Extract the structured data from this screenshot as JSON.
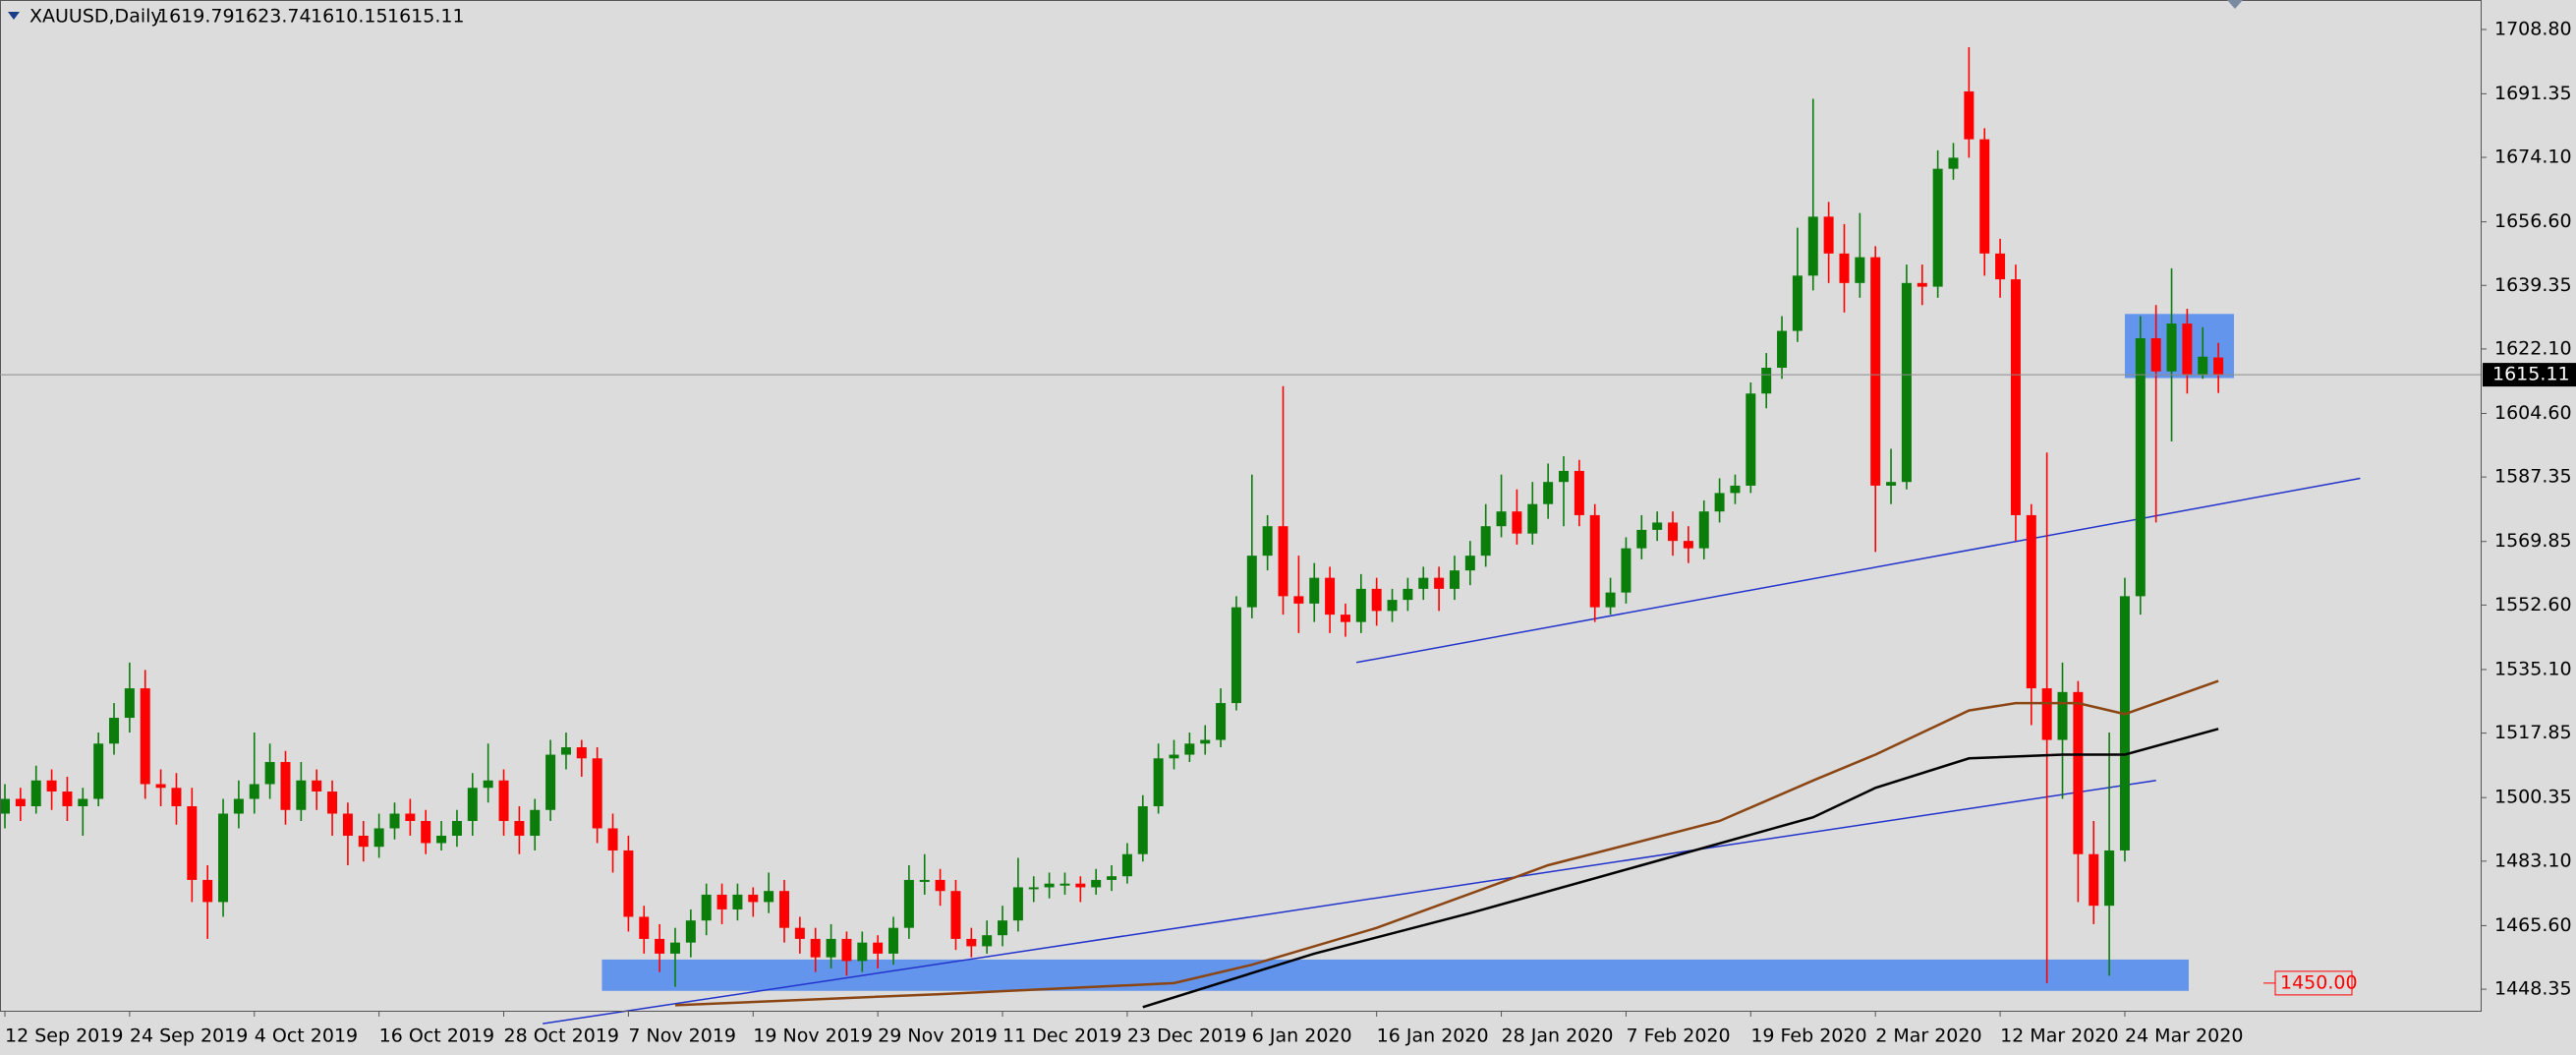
{
  "chart_data": {
    "type": "candlestick",
    "title": "XAUUSD,Daily",
    "categories": [
      "12 Sep 2019",
      null,
      null,
      null,
      null,
      null,
      null,
      null,
      "24 Sep 2019",
      null,
      null,
      null,
      null,
      null,
      null,
      null,
      "4 Oct 2019",
      null,
      null,
      null,
      null,
      null,
      null,
      null,
      "16 Oct 2019",
      null,
      null,
      null,
      null,
      null,
      null,
      null,
      "28 Oct 2019",
      null,
      null,
      null,
      null,
      null,
      null,
      null,
      "7 Nov 2019",
      null,
      null,
      null,
      null,
      null,
      null,
      null,
      "19 Nov 2019",
      null,
      null,
      null,
      null,
      null,
      null,
      null,
      "29 Nov 2019",
      null,
      null,
      null,
      null,
      null,
      null,
      null,
      "11 Dec 2019",
      null,
      null,
      null,
      null,
      null,
      null,
      null,
      "23 Dec 2019",
      null,
      null,
      null,
      null,
      null,
      null,
      null,
      "6 Jan 2020",
      null,
      null,
      null,
      null,
      null,
      null,
      null,
      "16 Jan 2020",
      null,
      null,
      null,
      null,
      null,
      null,
      null,
      "28 Jan 2020",
      null,
      null,
      null,
      null,
      null,
      null,
      null,
      "7 Feb 2020",
      null,
      null,
      null,
      null,
      null,
      null,
      null,
      "19 Feb 2020",
      null,
      null,
      null,
      null,
      null,
      null,
      null,
      "2 Mar 2020",
      null,
      null,
      null,
      null,
      null,
      null,
      null,
      "12 Mar 2020",
      null,
      null,
      null,
      null,
      null,
      null,
      null,
      "24 Mar 2020",
      null,
      null,
      null,
      null,
      null,
      null
    ],
    "open": [
      1496,
      1500,
      1498,
      1505,
      1502,
      1498,
      1500,
      1515,
      1522,
      1530,
      1504,
      1503,
      1498,
      1478,
      1472,
      1496,
      1500,
      1504,
      1510,
      1497,
      1505,
      1502,
      1496,
      1490,
      1487,
      1492,
      1496,
      1494,
      1488,
      1490,
      1494,
      1503,
      1505,
      1494,
      1490,
      1497,
      1512,
      1514,
      1511,
      1492,
      1486,
      1468,
      1462,
      1458,
      1461,
      1467,
      1474,
      1470,
      1474,
      1472,
      1475,
      1465,
      1462,
      1457,
      1462,
      1456,
      1461,
      1458,
      1465,
      1478,
      1478,
      1475,
      1462,
      1460,
      1463,
      1467,
      1476,
      1476,
      1477,
      1477,
      1476,
      1478,
      1479,
      1485,
      1498,
      1511,
      1512,
      1515,
      1516,
      1526,
      1552,
      1566,
      1574,
      1555,
      1553,
      1560,
      1550,
      1548,
      1557,
      1551,
      1554,
      1557,
      1560,
      1557,
      1562,
      1566,
      1574,
      1578,
      1572,
      1580,
      1586,
      1589,
      1577,
      1552,
      1556,
      1568,
      1573,
      1575,
      1570,
      1568,
      1578,
      1583,
      1585,
      1610,
      1617,
      1627,
      1642,
      1658,
      1648,
      1640,
      1647,
      1585,
      1586,
      1640,
      1639,
      1671,
      1692,
      1679,
      1648,
      1641,
      1577,
      1530,
      1516,
      1529,
      1485,
      1471,
      1486,
      1555,
      1625,
      1616,
      1629,
      1615,
      1619.79
    ],
    "high": [
      1504,
      1503,
      1509,
      1508,
      1506,
      1503,
      1518,
      1526,
      1537,
      1535,
      1508,
      1507,
      1503,
      1482,
      1500,
      1505,
      1518,
      1515,
      1513,
      1510,
      1508,
      1505,
      1499,
      1494,
      1496,
      1499,
      1500,
      1497,
      1494,
      1497,
      1507,
      1515,
      1508,
      1498,
      1500,
      1516,
      1518,
      1516,
      1514,
      1496,
      1490,
      1471,
      1466,
      1465,
      1470,
      1477,
      1477,
      1477,
      1476,
      1480,
      1478,
      1468,
      1465,
      1466,
      1464,
      1464,
      1463,
      1468,
      1482,
      1485,
      1481,
      1478,
      1465,
      1467,
      1471,
      1484,
      1479,
      1480,
      1480,
      1479,
      1481,
      1482,
      1488,
      1501,
      1515,
      1516,
      1518,
      1520,
      1530,
      1555,
      1588,
      1577,
      1612,
      1566,
      1564,
      1563,
      1553,
      1561,
      1560,
      1557,
      1560,
      1563,
      1563,
      1566,
      1570,
      1580,
      1588,
      1584,
      1586,
      1591,
      1593,
      1592,
      1580,
      1560,
      1571,
      1577,
      1578,
      1578,
      1574,
      1581,
      1587,
      1588,
      1613,
      1621,
      1631,
      1655,
      1690,
      1662,
      1656,
      1659,
      1650,
      1595,
      1645,
      1645,
      1676,
      1678,
      1704,
      1682,
      1652,
      1645,
      1580,
      1594,
      1537,
      1532,
      1494,
      1518,
      1560,
      1631,
      1634,
      1644,
      1633,
      1628,
      1623.74
    ],
    "low": [
      1492,
      1494,
      1496,
      1497,
      1494,
      1490,
      1498,
      1512,
      1518,
      1500,
      1498,
      1493,
      1472,
      1462,
      1468,
      1492,
      1496,
      1500,
      1493,
      1494,
      1497,
      1490,
      1482,
      1483,
      1484,
      1489,
      1490,
      1485,
      1486,
      1487,
      1490,
      1499,
      1490,
      1485,
      1486,
      1494,
      1508,
      1506,
      1488,
      1480,
      1464,
      1458,
      1453,
      1449,
      1457,
      1463,
      1466,
      1467,
      1468,
      1469,
      1461,
      1458,
      1453,
      1454,
      1452,
      1453,
      1454,
      1455,
      1462,
      1474,
      1471,
      1459,
      1457,
      1458,
      1460,
      1464,
      1472,
      1473,
      1474,
      1472,
      1474,
      1475,
      1477,
      1483,
      1496,
      1508,
      1510,
      1512,
      1514,
      1524,
      1549,
      1562,
      1550,
      1545,
      1548,
      1545,
      1544,
      1545,
      1547,
      1548,
      1551,
      1554,
      1551,
      1554,
      1558,
      1563,
      1571,
      1569,
      1569,
      1576,
      1574,
      1574,
      1548,
      1550,
      1553,
      1565,
      1570,
      1566,
      1564,
      1565,
      1575,
      1580,
      1583,
      1606,
      1614,
      1624,
      1638,
      1640,
      1632,
      1636,
      1567,
      1580,
      1584,
      1634,
      1636,
      1668,
      1674,
      1642,
      1636,
      1570,
      1520,
      1450,
      1500,
      1472,
      1466,
      1452,
      1483,
      1550,
      1575,
      1597,
      1610,
      1614,
      1610.15
    ],
    "close": [
      1500,
      1498,
      1505,
      1502,
      1498,
      1500,
      1515,
      1522,
      1530,
      1504,
      1503,
      1498,
      1478,
      1472,
      1496,
      1500,
      1504,
      1510,
      1497,
      1505,
      1502,
      1496,
      1490,
      1487,
      1492,
      1496,
      1494,
      1488,
      1490,
      1494,
      1503,
      1505,
      1494,
      1490,
      1497,
      1512,
      1514,
      1511,
      1492,
      1486,
      1468,
      1462,
      1458,
      1461,
      1467,
      1474,
      1470,
      1474,
      1472,
      1475,
      1465,
      1462,
      1457,
      1462,
      1456,
      1461,
      1458,
      1465,
      1478,
      1478,
      1475,
      1462,
      1460,
      1463,
      1467,
      1476,
      1476,
      1477,
      1477,
      1476,
      1478,
      1479,
      1485,
      1498,
      1511,
      1512,
      1515,
      1516,
      1526,
      1552,
      1566,
      1574,
      1555,
      1553,
      1560,
      1550,
      1548,
      1557,
      1551,
      1554,
      1557,
      1560,
      1557,
      1562,
      1566,
      1574,
      1578,
      1572,
      1580,
      1586,
      1589,
      1577,
      1552,
      1556,
      1568,
      1573,
      1575,
      1570,
      1568,
      1578,
      1583,
      1585,
      1610,
      1617,
      1627,
      1642,
      1658,
      1648,
      1640,
      1647,
      1585,
      1586,
      1640,
      1639,
      1671,
      1674,
      1679,
      1648,
      1641,
      1577,
      1530,
      1516,
      1529,
      1485,
      1471,
      1486,
      1555,
      1625,
      1616,
      1629,
      1615,
      1620,
      1615.11
    ],
    "up_color": "#0a7d0a",
    "down_color": "#ff0000",
    "ylim": [
      1442.5,
      1716.8
    ],
    "yticks": [
      {
        "value": 1708.8,
        "label": "1708.80"
      },
      {
        "value": 1691.35,
        "label": "1691.35"
      },
      {
        "value": 1674.1,
        "label": "1674.10"
      },
      {
        "value": 1656.6,
        "label": "1656.60"
      },
      {
        "value": 1639.35,
        "label": "1639.35"
      },
      {
        "value": 1622.1,
        "label": "1622.10"
      },
      {
        "value": 1604.6,
        "label": "1604.60"
      },
      {
        "value": 1587.35,
        "label": "1587.35"
      },
      {
        "value": 1569.85,
        "label": "1569.85"
      },
      {
        "value": 1552.6,
        "label": "1552.60"
      },
      {
        "value": 1535.1,
        "label": "1535.10"
      },
      {
        "value": 1517.85,
        "label": "1517.85"
      },
      {
        "value": 1500.35,
        "label": "1500.35"
      },
      {
        "value": 1483.1,
        "label": "1483.10"
      },
      {
        "value": 1465.6,
        "label": "1465.60"
      },
      {
        "value": 1448.35,
        "label": "1448.35"
      }
    ],
    "grid": false,
    "moving_averages": [
      {
        "color": "#8b4513",
        "x": [
          43,
          60,
          75,
          80,
          88,
          99,
          110,
          116,
          120,
          126,
          129,
          133,
          136,
          142
        ],
        "values": [
          1444,
          1447,
          1450,
          1455,
          1465,
          1482,
          1494,
          1505,
          1512,
          1524,
          1526,
          1526,
          1523,
          1532
        ]
      },
      {
        "color": "#000000",
        "x": [
          73,
          84,
          94,
          105,
          116,
          120,
          126,
          132,
          136,
          142
        ],
        "values": [
          1443.5,
          1458,
          1469,
          1482,
          1495,
          1503,
          1511,
          1512,
          1512,
          1519
        ]
      }
    ],
    "trendlines": [
      {
        "color": "#2233cc",
        "x": [
          34.5,
          138
        ],
        "values": [
          1439,
          1505
        ]
      },
      {
        "color": "#2233cc",
        "x": [
          86.7,
          151.1
        ],
        "values": [
          1537,
          1587
        ]
      }
    ],
    "zones": [
      {
        "color": "#6495ed",
        "x": [
          38.3,
          140.1
        ],
        "y": [
          1447.9,
          1456.4
        ]
      },
      {
        "color": "#6495ed",
        "x": [
          136,
          143
        ],
        "y": [
          1614.2,
          1631.6
        ]
      }
    ],
    "price_alert": {
      "value": 1450,
      "label": "1450.00"
    }
  }
}
